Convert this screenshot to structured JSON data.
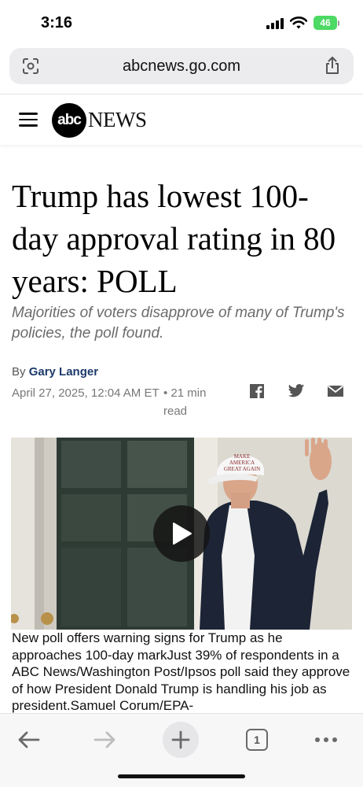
{
  "status_bar": {
    "time": "3:16",
    "battery": "46"
  },
  "browser": {
    "url": "abcnews.go.com",
    "left_icon": "page-settings-icon",
    "right_icon": "share-icon"
  },
  "site_header": {
    "menu_icon": "hamburger-icon",
    "logo_abc": "abc",
    "logo_news": "NEWS"
  },
  "article": {
    "headline": "Trump has lowest 100-day approval rating in 80 years: POLL",
    "subheadline": "Majorities of voters disapprove of many of Trump's policies, the poll found.",
    "byline_prefix": "By",
    "author": "Gary Langer",
    "date": "April 27, 2025, 12:04 AM ET",
    "read_time": "• 21 min read",
    "share_icons": [
      "facebook-icon",
      "twitter-icon",
      "email-icon"
    ]
  },
  "video": {
    "cap_text_line1": "MAKE AMERICA",
    "cap_text_line2": "GREAT AGAIN",
    "caption": "New poll offers warning signs for Trump as he approaches 100-day markJust 39% of respondents in a ABC News/Washington Post/Ipsos poll said they approve of how President Donald Trump is handling his job as president.Samuel Corum/EPA-"
  },
  "toolbar": {
    "tab_count": "1",
    "icons": [
      "back-arrow-icon",
      "forward-arrow-icon",
      "new-tab-icon",
      "tabs-icon",
      "more-icon"
    ]
  },
  "colors": {
    "author_link": "#1b3a6b",
    "battery": "#4cd964",
    "url_bar_bg": "#ececef"
  }
}
